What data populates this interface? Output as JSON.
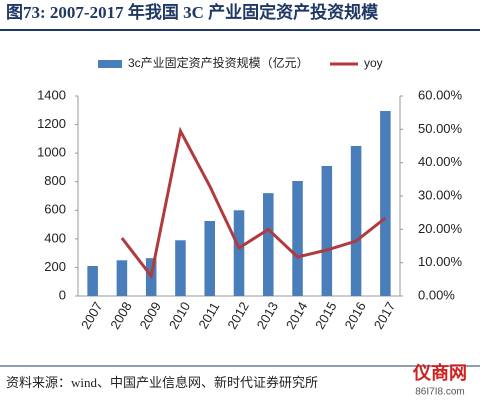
{
  "chart_data": {
    "type": "bar-line",
    "title": "图73:  2007-2017 年我国 3C 产业固定资产投资规模",
    "source": "资料来源：wind、中国产业信息网、新时代证券研究所",
    "watermark": "仪商网",
    "watermark_url": "86I7I8.com",
    "categories": [
      "2007",
      "2008",
      "2009",
      "2010",
      "2011",
      "2012",
      "2013",
      "2014",
      "2015",
      "2016",
      "2017"
    ],
    "series": [
      {
        "name": "3c产业固定资产投资规模（亿元）",
        "color": "#4a7ebb",
        "kind": "bar",
        "axis": "y",
        "values": [
          210,
          250,
          265,
          390,
          525,
          600,
          720,
          805,
          910,
          1050,
          1295
        ]
      },
      {
        "name": "yoy",
        "color": "#b03a3e",
        "kind": "line",
        "axis": "y2",
        "values": [
          null,
          17.4,
          6,
          49.5,
          33,
          14.4,
          20,
          11.7,
          13.8,
          16.5,
          23.4
        ]
      }
    ],
    "ylim": [
      0,
      1400
    ],
    "yticks": [
      0,
      200,
      400,
      600,
      800,
      1000,
      1200,
      1400
    ],
    "y2lim": [
      0,
      60
    ],
    "y2ticks": [
      {
        "value": 0,
        "label": "0.00%"
      },
      {
        "value": 10,
        "label": "10.00%"
      },
      {
        "value": 20,
        "label": "20.00%"
      },
      {
        "value": 30,
        "label": "30.00%"
      },
      {
        "value": 40,
        "label": "40.00%"
      },
      {
        "value": 50,
        "label": "50.00%"
      },
      {
        "value": 60,
        "label": "60.00%"
      }
    ]
  }
}
